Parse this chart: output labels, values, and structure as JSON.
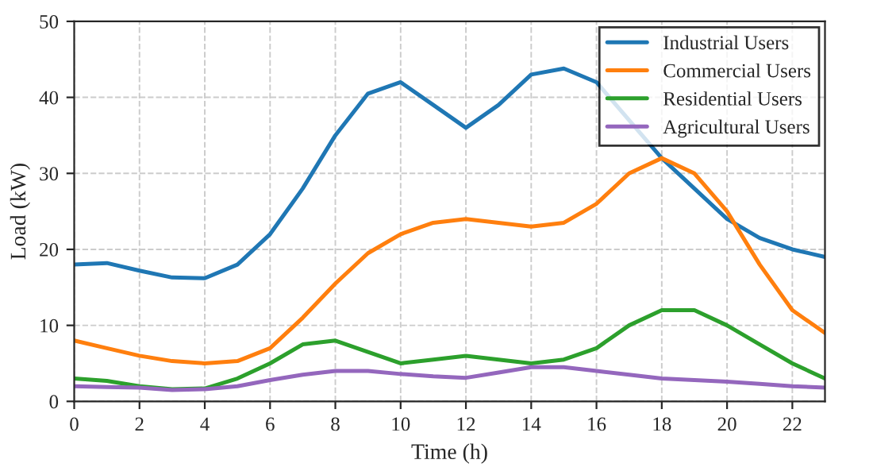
{
  "chart_data": {
    "type": "line",
    "xlabel": "Time (h)",
    "ylabel": "Load (kW)",
    "x": [
      0,
      1,
      2,
      3,
      4,
      5,
      6,
      7,
      8,
      9,
      10,
      11,
      12,
      13,
      14,
      15,
      16,
      17,
      18,
      19,
      20,
      21,
      22,
      23
    ],
    "series": [
      {
        "name": "Industrial Users",
        "color": "#1f77b4",
        "values": [
          18,
          18.2,
          17.2,
          16.3,
          16.2,
          18,
          22,
          28,
          35,
          40.5,
          42,
          39,
          36,
          39,
          43,
          43.8,
          42,
          null,
          32,
          28,
          24,
          21.5,
          20,
          19
        ]
      },
      {
        "name": "Commercial Users",
        "color": "#ff7f0e",
        "values": [
          8,
          7,
          6,
          5.3,
          5,
          5.3,
          7,
          11,
          15.5,
          19.5,
          22,
          23.5,
          24,
          23.5,
          23,
          23.5,
          26,
          30,
          32,
          30,
          25,
          18,
          12,
          9
        ]
      },
      {
        "name": "Residential Users",
        "color": "#2ca02c",
        "values": [
          3,
          2.7,
          2,
          1.6,
          1.7,
          3,
          5,
          7.5,
          8,
          6.5,
          5,
          5.5,
          6,
          5.5,
          5,
          5.5,
          7,
          10,
          12,
          12,
          10,
          7.5,
          5,
          3
        ]
      },
      {
        "name": "Agricultural Users",
        "color": "#9467bd",
        "values": [
          2,
          1.9,
          1.8,
          1.5,
          1.6,
          2,
          2.8,
          3.5,
          4,
          4,
          3.6,
          3.3,
          3.1,
          3.8,
          4.5,
          4.5,
          4,
          3.5,
          3,
          2.8,
          2.6,
          2.3,
          2,
          1.8
        ]
      }
    ],
    "xlim": [
      0,
      23
    ],
    "xticks": [
      0,
      2,
      4,
      6,
      8,
      10,
      12,
      14,
      16,
      18,
      20,
      22
    ],
    "ylim": [
      0,
      50
    ],
    "yticks": [
      0,
      10,
      20,
      30,
      40,
      50
    ],
    "grid": true,
    "legend": "top right",
    "line_style": "solid",
    "marker": "none"
  }
}
